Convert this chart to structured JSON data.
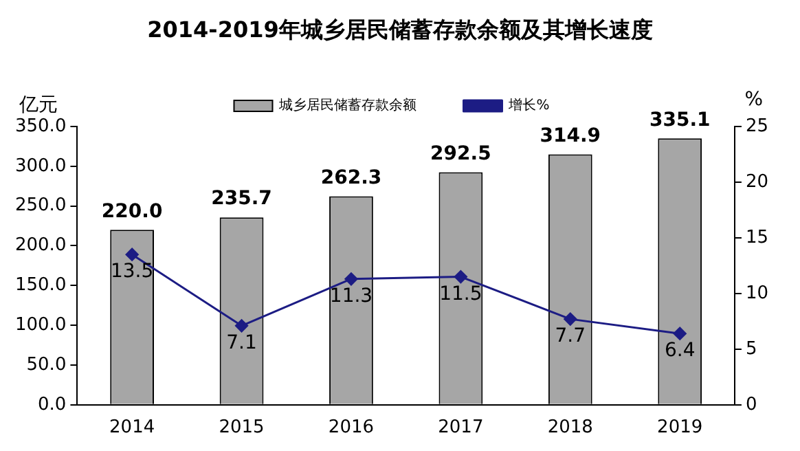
{
  "chart_data": {
    "type": "bar",
    "title": "2014-2019年城乡居民储蓄存款余额及其增长速度",
    "categories": [
      "2014",
      "2015",
      "2016",
      "2017",
      "2018",
      "2019"
    ],
    "series": [
      {
        "name": "城乡居民储蓄存款余额",
        "color": "#a6a6a6",
        "values": [
          220.0,
          235.7,
          262.3,
          292.5,
          314.9,
          335.1
        ],
        "value_labels": [
          "220.0",
          "235.7",
          "262.3",
          "292.5",
          "314.9",
          "335.1"
        ]
      },
      {
        "name": "增长%",
        "type": "line",
        "axis": "y2",
        "color": "#1c1c84",
        "values": [
          13.5,
          7.1,
          11.3,
          11.5,
          7.7,
          6.4
        ],
        "value_labels": [
          "13.5",
          "7.1",
          "11.3",
          "11.5",
          "7.7",
          "6.4"
        ]
      }
    ],
    "ylabel": "亿元",
    "y2label": "%",
    "ylim": [
      0,
      350
    ],
    "yticks": [
      {
        "value": 0,
        "label": "0.0"
      },
      {
        "value": 50,
        "label": "50.0"
      },
      {
        "value": 100,
        "label": "100.0"
      },
      {
        "value": 150,
        "label": "150.0"
      },
      {
        "value": 200,
        "label": "200.0"
      },
      {
        "value": 250,
        "label": "250.0"
      },
      {
        "value": 300,
        "label": "300.0"
      },
      {
        "value": 350,
        "label": "350.0"
      }
    ],
    "y2lim": [
      0,
      25
    ],
    "y2ticks": [
      0,
      5,
      10,
      15,
      20,
      25
    ],
    "grid": false,
    "legend": "top",
    "marker": "diamond",
    "line_style": "solid"
  }
}
